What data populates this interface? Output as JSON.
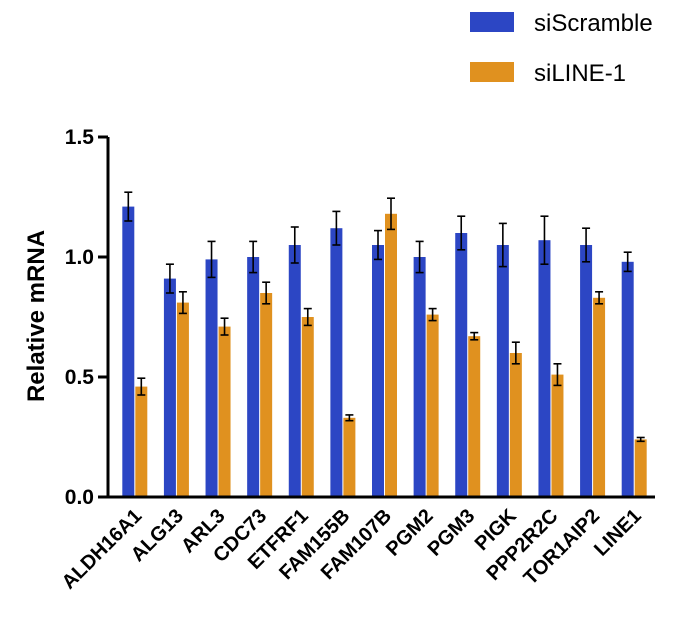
{
  "chart_data": {
    "type": "bar",
    "title": "",
    "xlabel": "",
    "ylabel": "Relative mRNA",
    "ylim": [
      0,
      1.5
    ],
    "yticks": [
      "0.0",
      "0.5",
      "1.0",
      "1.5"
    ],
    "categories": [
      "ALDH16A1",
      "ALG13",
      "ARL3",
      "CDC73",
      "ETFRF1",
      "FAM155B",
      "FAM107B",
      "PGM2",
      "PGM3",
      "PIGK",
      "PPP2R2C",
      "TOR1AIP2",
      "LINE1"
    ],
    "series": [
      {
        "name": "siScramble",
        "color": "#2c46c4",
        "values": [
          1.21,
          0.91,
          0.99,
          1.0,
          1.05,
          1.12,
          1.05,
          1.0,
          1.1,
          1.05,
          1.07,
          1.05,
          0.98
        ],
        "errors": [
          0.06,
          0.06,
          0.075,
          0.065,
          0.075,
          0.07,
          0.06,
          0.065,
          0.07,
          0.09,
          0.1,
          0.07,
          0.04
        ]
      },
      {
        "name": "siLINE-1",
        "color": "#e0911f",
        "values": [
          0.46,
          0.81,
          0.71,
          0.85,
          0.75,
          0.33,
          1.18,
          0.76,
          0.67,
          0.6,
          0.51,
          0.83,
          0.24
        ],
        "errors": [
          0.035,
          0.045,
          0.035,
          0.045,
          0.035,
          0.012,
          0.065,
          0.025,
          0.015,
          0.045,
          0.045,
          0.025,
          0.008
        ]
      }
    ],
    "legend_position": "top-right"
  }
}
